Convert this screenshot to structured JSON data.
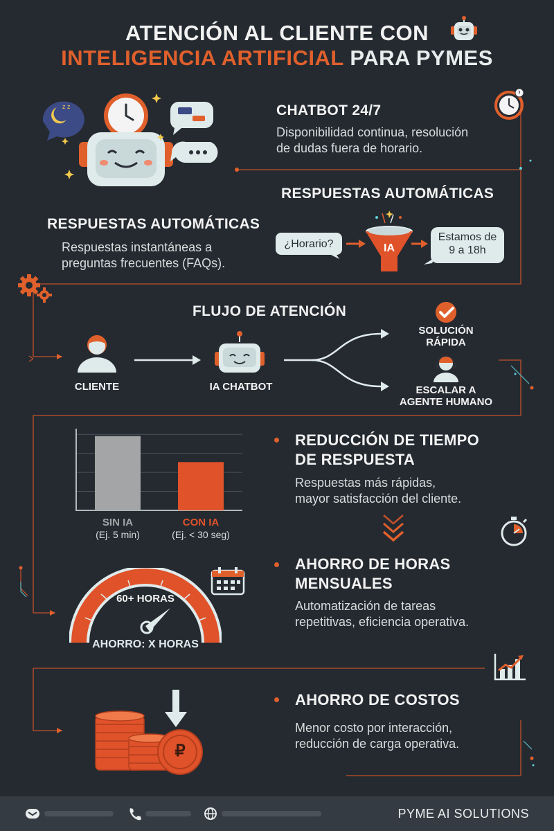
{
  "title": {
    "line1": "ATENCIÓN AL CLIENTE CON",
    "line2_accent": "INTELIGENCIA ARTIFICIAL",
    "line2_rest": " PARA PYMES"
  },
  "chatbot": {
    "heading": "CHATBOT 24/7",
    "description_line1": "Disponibilidad continua, resolución",
    "description_line2": "de dudas fuera de horario."
  },
  "auto_responses": {
    "heading_right": "RESPUESTAS AUTOMÁTICAS",
    "heading_left": "RESPUESTAS AUTOMÁTICAS",
    "description_line1": "Respuestas instantáneas a",
    "description_line2": "preguntas frecuentes (FAQs).",
    "bubble_question": "¿Horario?",
    "funnel_label": "IA",
    "bubble_answer_line1": "Estamos de",
    "bubble_answer_line2": "9 a 18h"
  },
  "flow": {
    "heading": "FLUJO DE ATENCIÓN",
    "client_label": "CLIENTE",
    "bot_label": "IA CHATBOT",
    "solution_line1": "SOLUCIÓN",
    "solution_line2": "RÁPIDA",
    "escalate_line1": "ESCALAR A",
    "escalate_line2": "AGENTE HUMANO"
  },
  "response_time": {
    "heading_line1": "REDUCCIÓN DE TIEMPO",
    "heading_line2": "DE RESPUESTA",
    "description_line1": "Respuestas más rápidas,",
    "description_line2": "mayor satisfacción del cliente."
  },
  "chart_data": {
    "type": "bar",
    "categories": [
      "SIN IA",
      "CON IA"
    ],
    "sublabels": [
      "(Ej. 5 min)",
      "(Ej. < 30 seg)"
    ],
    "values": [
      100,
      65
    ],
    "ylim": [
      0,
      110
    ],
    "colors": [
      "#a3a5a6",
      "#e0522a"
    ],
    "grid": true
  },
  "hours_saving": {
    "heading_line1": "AHORRO DE HORAS",
    "heading_line2": "MENSUALES",
    "description_line1": "Automatización de tareas",
    "description_line2": "repetitivas, eficiencia operativa.",
    "gauge_value_label": "60+ HORAS",
    "gauge_caption": "AHORRO: X HORAS"
  },
  "cost_saving": {
    "heading": "AHORRO DE COSTOS",
    "description_line1": "Menor costo por interacción,",
    "description_line2": "reducción de carga operativa.",
    "coin_symbol": "₽"
  },
  "footer": {
    "brand": "PYME AI SOLUTIONS",
    "icons": [
      "email-icon",
      "phone-icon",
      "globe-icon"
    ]
  },
  "colors": {
    "background": "#252a31",
    "accent": "#e0602c",
    "text": "#f2f2f2",
    "robot_body": "#dfeaea",
    "footer": "#353b43"
  }
}
